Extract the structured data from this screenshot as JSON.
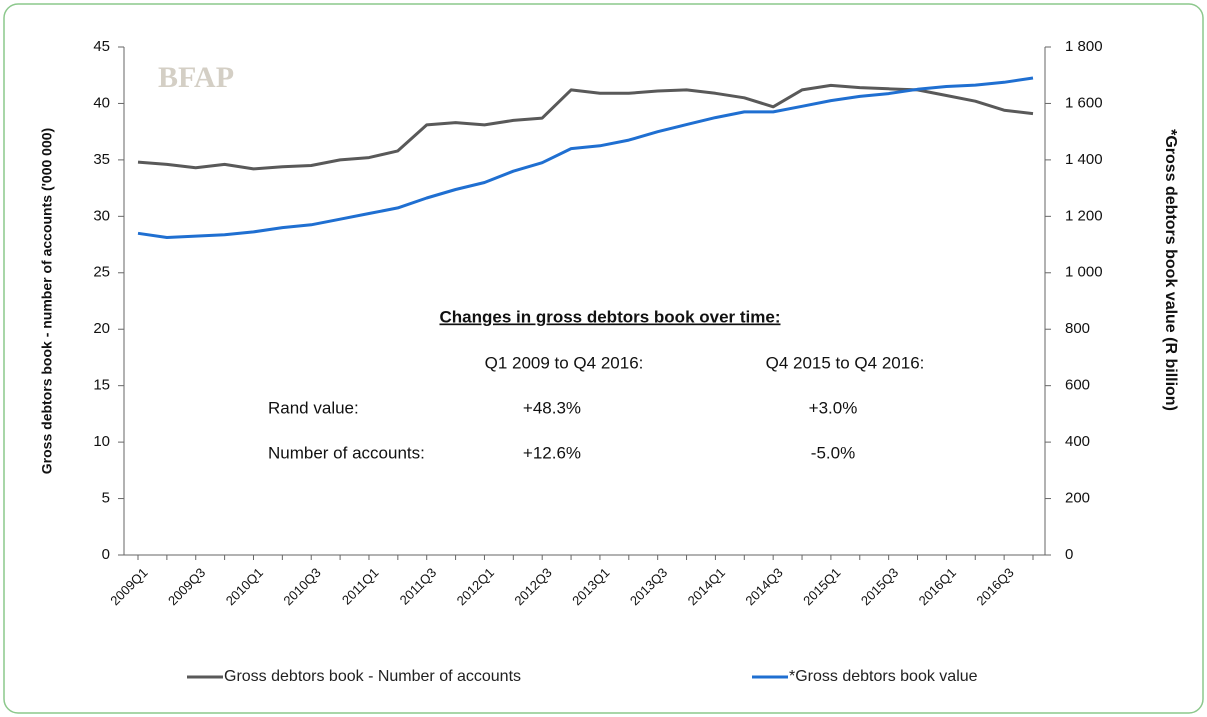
{
  "chart_data": {
    "type": "line",
    "logo": "BFAP",
    "categories": [
      "2009Q1",
      null,
      "2009Q3",
      null,
      "2010Q1",
      null,
      "2010Q3",
      null,
      "2011Q1",
      null,
      "2011Q3",
      null,
      "2012Q1",
      null,
      "2012Q3",
      null,
      "2013Q1",
      null,
      "2013Q3",
      null,
      "2014Q1",
      null,
      "2014Q3",
      null,
      "2015Q1",
      null,
      "2015Q3",
      null,
      "2016Q1",
      null,
      "2016Q3",
      null
    ],
    "series": [
      {
        "name": "Gross debtors book - Number of accounts",
        "color": "#595959",
        "axis": "y",
        "values": [
          34.8,
          34.6,
          34.3,
          34.6,
          34.2,
          34.4,
          34.5,
          35.0,
          35.2,
          35.8,
          38.1,
          38.3,
          38.1,
          38.5,
          38.7,
          41.2,
          40.9,
          40.9,
          41.1,
          41.2,
          40.9,
          40.5,
          39.7,
          41.2,
          41.6,
          41.4,
          41.3,
          41.2,
          40.7,
          40.2,
          39.4,
          39.1
        ]
      },
      {
        "name": "*Gross debtors book value",
        "color": "#1f6fd1",
        "axis": "y2",
        "values": [
          1140,
          1125,
          1130,
          1135,
          1145,
          1160,
          1170,
          1190,
          1210,
          1230,
          1265,
          1295,
          1320,
          1360,
          1390,
          1440,
          1450,
          1470,
          1500,
          1525,
          1550,
          1570,
          1570,
          1590,
          1610,
          1625,
          1635,
          1650,
          1660,
          1665,
          1675,
          1690
        ]
      }
    ],
    "ylabel": "Gross debtors book - number of accounts ('000 000)",
    "y2label": "*Gross debtors book value  (R billion)",
    "ylim": [
      0,
      45
    ],
    "yticks": [
      0,
      5,
      10,
      15,
      20,
      25,
      30,
      35,
      40,
      45
    ],
    "y2lim": [
      0,
      1800
    ],
    "y2ticks": [
      0,
      200,
      400,
      600,
      800,
      {
        "value": 1000,
        "label": "1 000"
      },
      {
        "value": 1200,
        "label": "1 200"
      },
      {
        "value": 1400,
        "label": "1 400"
      },
      {
        "value": 1600,
        "label": "1 600"
      },
      {
        "value": 1800,
        "label": "1 800"
      }
    ],
    "grid": false,
    "legend": "bottom",
    "annotation": {
      "heading": "Changes in gross debtors book over time:",
      "columns": [
        "Q1 2009 to Q4 2016:",
        "Q4 2015 to Q4 2016:"
      ],
      "rows": [
        {
          "label": "Rand value:",
          "values": [
            "+48.3%",
            "+3.0%"
          ]
        },
        {
          "label": "Number of accounts:",
          "values": [
            "+12.6%",
            "-5.0%"
          ]
        }
      ]
    }
  }
}
